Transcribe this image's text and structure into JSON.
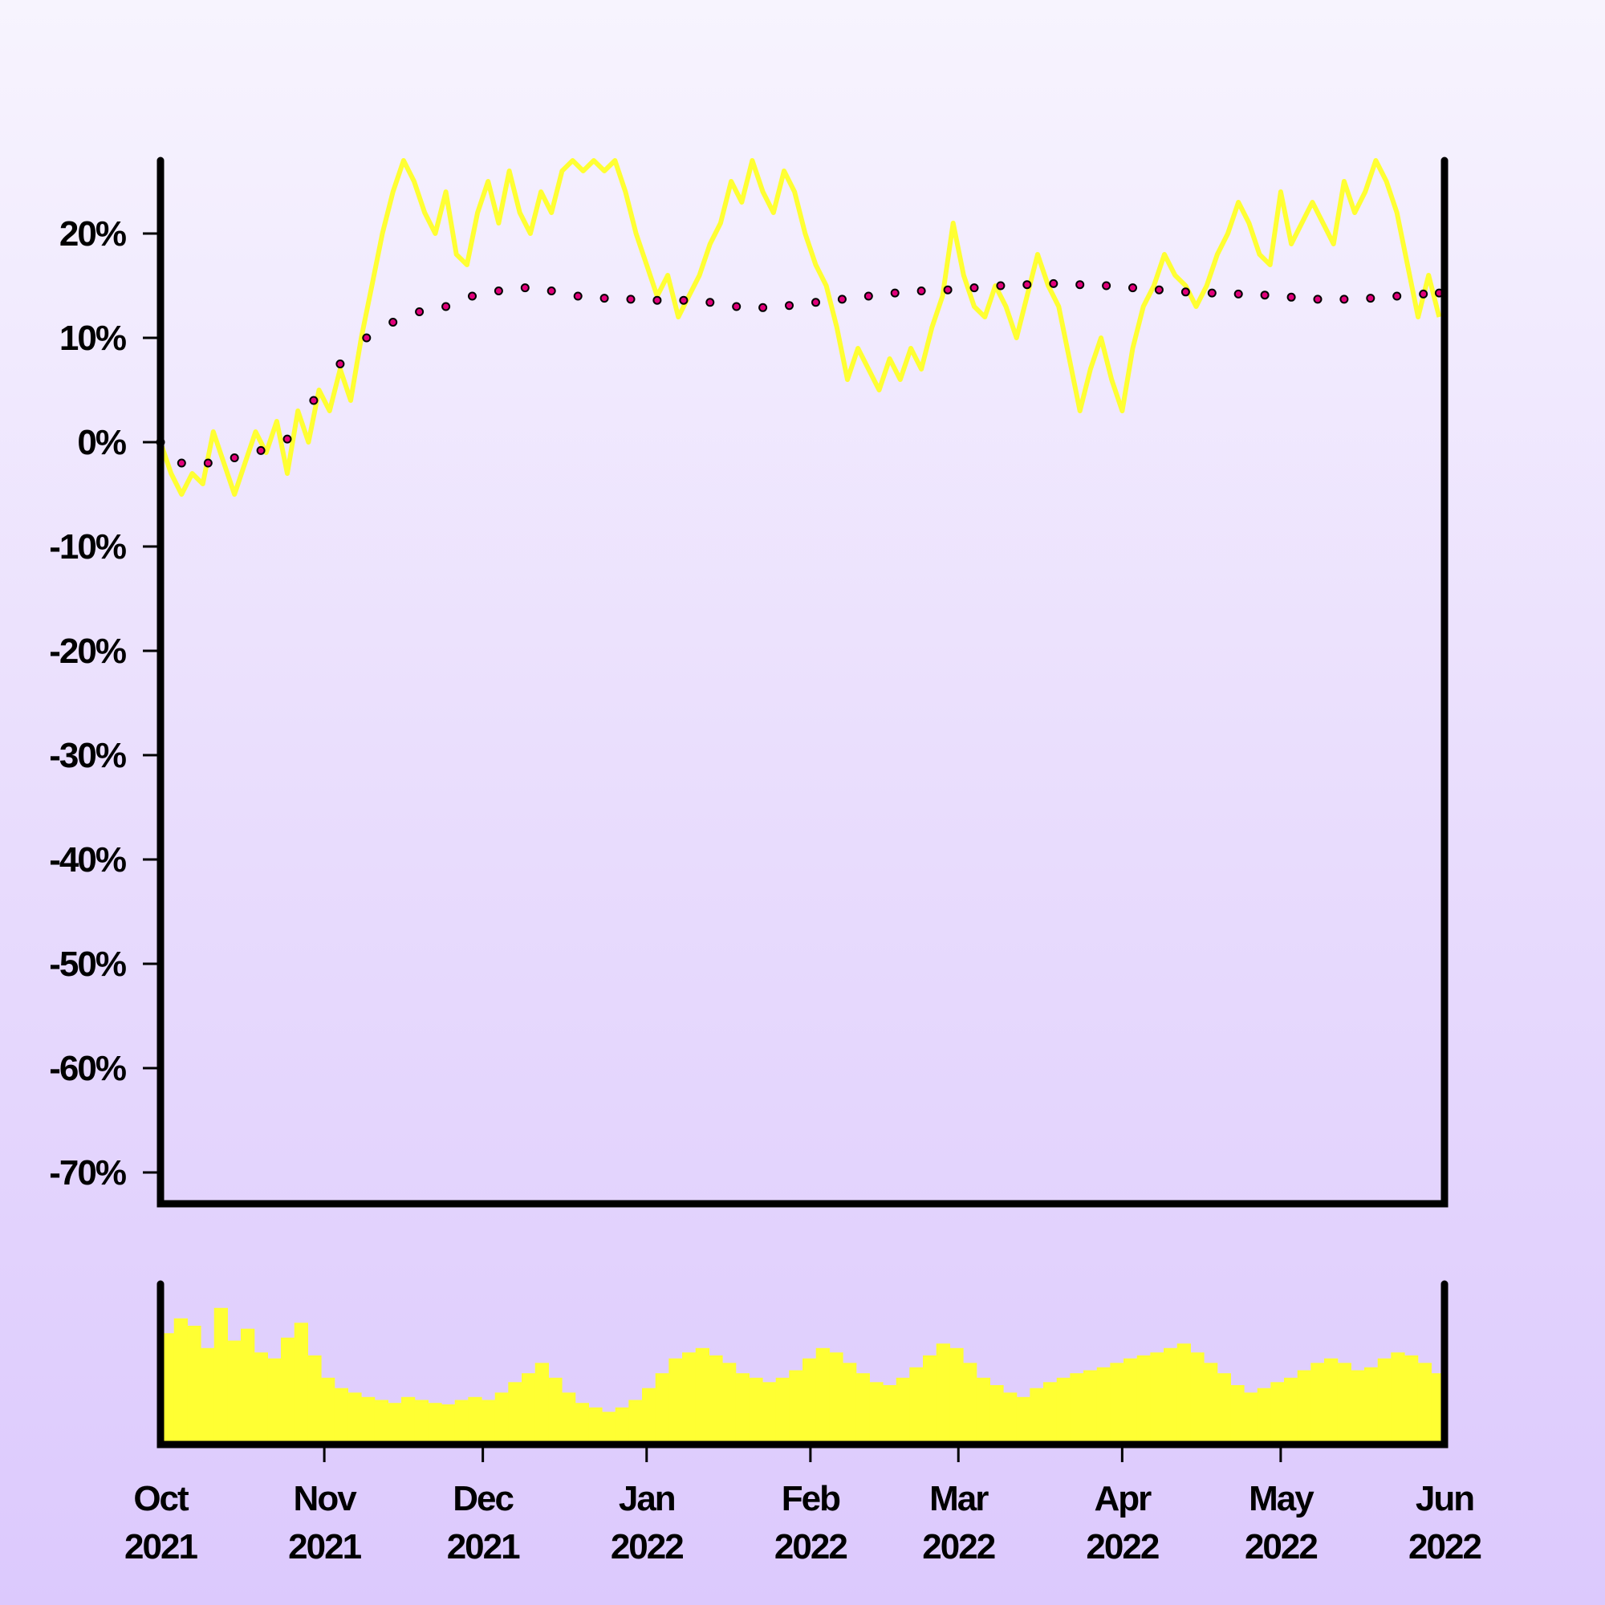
{
  "chart_data": [
    {
      "type": "line",
      "panel": "price-change",
      "title": "",
      "xlabel": "",
      "ylabel": "",
      "x_start": "2021-10-01",
      "x_end": "2022-06-01",
      "ylim": [
        -73,
        27
      ],
      "y_ticks": [
        20,
        10,
        0,
        -10,
        -20,
        -30,
        -40,
        -50,
        -60,
        -70
      ],
      "y_tick_labels": [
        "20%",
        "10%",
        "0%",
        "-10%",
        "-20%",
        "-30%",
        "-40%",
        "-50%",
        "-60%",
        "-70%"
      ],
      "grid": false,
      "colors": {
        "line": "#ffff33",
        "dots": "#e0007a",
        "dot_outline": "#000000",
        "axes": "#000000"
      },
      "series": [
        {
          "role": "daily",
          "points": [
            [
              "2021-10-01",
              0
            ],
            [
              "2021-10-03",
              -3
            ],
            [
              "2021-10-05",
              -5
            ],
            [
              "2021-10-07",
              -3
            ],
            [
              "2021-10-09",
              -4
            ],
            [
              "2021-10-11",
              1
            ],
            [
              "2021-10-13",
              -2
            ],
            [
              "2021-10-15",
              -5
            ],
            [
              "2021-10-17",
              -2
            ],
            [
              "2021-10-19",
              1
            ],
            [
              "2021-10-21",
              -1
            ],
            [
              "2021-10-23",
              2
            ],
            [
              "2021-10-25",
              -3
            ],
            [
              "2021-10-27",
              3
            ],
            [
              "2021-10-29",
              0
            ],
            [
              "2021-10-31",
              5
            ],
            [
              "2021-11-02",
              3
            ],
            [
              "2021-11-04",
              7
            ],
            [
              "2021-11-06",
              4
            ],
            [
              "2021-11-08",
              10
            ],
            [
              "2021-11-10",
              15
            ],
            [
              "2021-11-12",
              20
            ],
            [
              "2021-11-14",
              24
            ],
            [
              "2021-11-16",
              27
            ],
            [
              "2021-11-18",
              25
            ],
            [
              "2021-11-20",
              22
            ],
            [
              "2021-11-22",
              20
            ],
            [
              "2021-11-24",
              24
            ],
            [
              "2021-11-26",
              18
            ],
            [
              "2021-11-28",
              17
            ],
            [
              "2021-11-30",
              22
            ],
            [
              "2021-12-02",
              25
            ],
            [
              "2021-12-04",
              21
            ],
            [
              "2021-12-06",
              26
            ],
            [
              "2021-12-08",
              22
            ],
            [
              "2021-12-10",
              20
            ],
            [
              "2021-12-12",
              24
            ],
            [
              "2021-12-14",
              22
            ],
            [
              "2021-12-16",
              26
            ],
            [
              "2021-12-18",
              27
            ],
            [
              "2021-12-20",
              26
            ],
            [
              "2021-12-22",
              27
            ],
            [
              "2021-12-24",
              26
            ],
            [
              "2021-12-26",
              27
            ],
            [
              "2021-12-28",
              24
            ],
            [
              "2021-12-30",
              20
            ],
            [
              "2022-01-01",
              17
            ],
            [
              "2022-01-03",
              14
            ],
            [
              "2022-01-05",
              16
            ],
            [
              "2022-01-07",
              12
            ],
            [
              "2022-01-09",
              14
            ],
            [
              "2022-01-11",
              16
            ],
            [
              "2022-01-13",
              19
            ],
            [
              "2022-01-15",
              21
            ],
            [
              "2022-01-17",
              25
            ],
            [
              "2022-01-19",
              23
            ],
            [
              "2022-01-21",
              27
            ],
            [
              "2022-01-23",
              24
            ],
            [
              "2022-01-25",
              22
            ],
            [
              "2022-01-27",
              26
            ],
            [
              "2022-01-29",
              24
            ],
            [
              "2022-01-31",
              20
            ],
            [
              "2022-02-02",
              17
            ],
            [
              "2022-02-04",
              15
            ],
            [
              "2022-02-06",
              11
            ],
            [
              "2022-02-08",
              6
            ],
            [
              "2022-02-10",
              9
            ],
            [
              "2022-02-12",
              7
            ],
            [
              "2022-02-14",
              5
            ],
            [
              "2022-02-16",
              8
            ],
            [
              "2022-02-18",
              6
            ],
            [
              "2022-02-20",
              9
            ],
            [
              "2022-02-22",
              7
            ],
            [
              "2022-02-24",
              11
            ],
            [
              "2022-02-26",
              14
            ],
            [
              "2022-02-28",
              21
            ],
            [
              "2022-03-02",
              16
            ],
            [
              "2022-03-04",
              13
            ],
            [
              "2022-03-06",
              12
            ],
            [
              "2022-03-08",
              15
            ],
            [
              "2022-03-10",
              13
            ],
            [
              "2022-03-12",
              10
            ],
            [
              "2022-03-14",
              14
            ],
            [
              "2022-03-16",
              18
            ],
            [
              "2022-03-18",
              15
            ],
            [
              "2022-03-20",
              13
            ],
            [
              "2022-03-22",
              8
            ],
            [
              "2022-03-24",
              3
            ],
            [
              "2022-03-26",
              7
            ],
            [
              "2022-03-28",
              10
            ],
            [
              "2022-03-30",
              6
            ],
            [
              "2022-04-01",
              3
            ],
            [
              "2022-04-03",
              9
            ],
            [
              "2022-04-05",
              13
            ],
            [
              "2022-04-07",
              15
            ],
            [
              "2022-04-09",
              18
            ],
            [
              "2022-04-11",
              16
            ],
            [
              "2022-04-13",
              15
            ],
            [
              "2022-04-15",
              13
            ],
            [
              "2022-04-17",
              15
            ],
            [
              "2022-04-19",
              18
            ],
            [
              "2022-04-21",
              20
            ],
            [
              "2022-04-23",
              23
            ],
            [
              "2022-04-25",
              21
            ],
            [
              "2022-04-27",
              18
            ],
            [
              "2022-04-29",
              17
            ],
            [
              "2022-05-01",
              24
            ],
            [
              "2022-05-03",
              19
            ],
            [
              "2022-05-05",
              21
            ],
            [
              "2022-05-07",
              23
            ],
            [
              "2022-05-09",
              21
            ],
            [
              "2022-05-11",
              19
            ],
            [
              "2022-05-13",
              25
            ],
            [
              "2022-05-15",
              22
            ],
            [
              "2022-05-17",
              24
            ],
            [
              "2022-05-19",
              27
            ],
            [
              "2022-05-21",
              25
            ],
            [
              "2022-05-23",
              22
            ],
            [
              "2022-05-25",
              17
            ],
            [
              "2022-05-27",
              12
            ],
            [
              "2022-05-29",
              16
            ],
            [
              "2022-05-31",
              12
            ]
          ]
        },
        {
          "role": "smoothed",
          "points": [
            [
              "2021-10-01",
              0
            ],
            [
              "2021-10-05",
              -2
            ],
            [
              "2021-10-10",
              -2
            ],
            [
              "2021-10-15",
              -1.5
            ],
            [
              "2021-10-20",
              -0.8
            ],
            [
              "2021-10-25",
              0.3
            ],
            [
              "2021-10-30",
              4
            ],
            [
              "2021-11-04",
              7.5
            ],
            [
              "2021-11-09",
              10
            ],
            [
              "2021-11-14",
              11.5
            ],
            [
              "2021-11-19",
              12.5
            ],
            [
              "2021-11-24",
              13
            ],
            [
              "2021-11-29",
              14
            ],
            [
              "2021-12-04",
              14.5
            ],
            [
              "2021-12-09",
              14.8
            ],
            [
              "2021-12-14",
              14.5
            ],
            [
              "2021-12-19",
              14
            ],
            [
              "2021-12-24",
              13.8
            ],
            [
              "2021-12-29",
              13.7
            ],
            [
              "2022-01-03",
              13.6
            ],
            [
              "2022-01-08",
              13.6
            ],
            [
              "2022-01-13",
              13.4
            ],
            [
              "2022-01-18",
              13
            ],
            [
              "2022-01-23",
              12.9
            ],
            [
              "2022-01-28",
              13.1
            ],
            [
              "2022-02-02",
              13.4
            ],
            [
              "2022-02-07",
              13.7
            ],
            [
              "2022-02-12",
              14
            ],
            [
              "2022-02-17",
              14.3
            ],
            [
              "2022-02-22",
              14.5
            ],
            [
              "2022-02-27",
              14.6
            ],
            [
              "2022-03-04",
              14.8
            ],
            [
              "2022-03-09",
              15
            ],
            [
              "2022-03-14",
              15.1
            ],
            [
              "2022-03-19",
              15.2
            ],
            [
              "2022-03-24",
              15.1
            ],
            [
              "2022-03-29",
              15
            ],
            [
              "2022-04-03",
              14.8
            ],
            [
              "2022-04-08",
              14.6
            ],
            [
              "2022-04-13",
              14.4
            ],
            [
              "2022-04-18",
              14.3
            ],
            [
              "2022-04-23",
              14.2
            ],
            [
              "2022-04-28",
              14.1
            ],
            [
              "2022-05-03",
              13.9
            ],
            [
              "2022-05-08",
              13.7
            ],
            [
              "2022-05-13",
              13.7
            ],
            [
              "2022-05-18",
              13.8
            ],
            [
              "2022-05-23",
              14
            ],
            [
              "2022-05-28",
              14.2
            ],
            [
              "2022-05-31",
              14.3
            ]
          ]
        }
      ]
    },
    {
      "type": "bar",
      "panel": "volume",
      "title": "",
      "x_start": "2021-10-01",
      "x_end": "2022-06-01",
      "x_tick_labels": [
        [
          "Oct",
          "2021"
        ],
        [
          "Nov",
          "2021"
        ],
        [
          "Dec",
          "2021"
        ],
        [
          "Jan",
          "2022"
        ],
        [
          "Feb",
          "2022"
        ],
        [
          "Mar",
          "2022"
        ],
        [
          "Apr",
          "2022"
        ],
        [
          "May",
          "2022"
        ],
        [
          "Jun",
          "2022"
        ]
      ],
      "x_ticks": [
        "2021-10-01",
        "2021-11-01",
        "2021-12-01",
        "2022-01-01",
        "2022-02-01",
        "2022-03-01",
        "2022-04-01",
        "2022-05-01",
        "2022-06-01"
      ],
      "ylim": [
        0,
        1
      ],
      "colors": {
        "bars": "#ffff33"
      },
      "values": [
        0.75,
        0.85,
        0.8,
        0.65,
        0.92,
        0.7,
        0.78,
        0.62,
        0.58,
        0.72,
        0.82,
        0.6,
        0.45,
        0.38,
        0.35,
        0.32,
        0.3,
        0.28,
        0.32,
        0.3,
        0.28,
        0.27,
        0.3,
        0.32,
        0.3,
        0.35,
        0.42,
        0.48,
        0.55,
        0.45,
        0.35,
        0.28,
        0.25,
        0.22,
        0.25,
        0.3,
        0.38,
        0.48,
        0.58,
        0.62,
        0.65,
        0.6,
        0.55,
        0.48,
        0.45,
        0.42,
        0.45,
        0.5,
        0.58,
        0.65,
        0.62,
        0.55,
        0.48,
        0.42,
        0.4,
        0.45,
        0.52,
        0.6,
        0.68,
        0.65,
        0.55,
        0.45,
        0.4,
        0.35,
        0.32,
        0.38,
        0.42,
        0.45,
        0.48,
        0.5,
        0.52,
        0.55,
        0.58,
        0.6,
        0.62,
        0.65,
        0.68,
        0.62,
        0.55,
        0.48,
        0.4,
        0.35,
        0.38,
        0.42,
        0.45,
        0.5,
        0.55,
        0.58,
        0.55,
        0.5,
        0.52,
        0.58,
        0.62,
        0.6,
        0.55,
        0.48
      ]
    }
  ]
}
